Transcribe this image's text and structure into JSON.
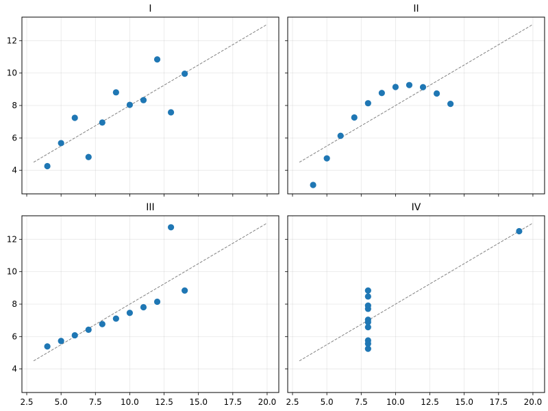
{
  "chart_data": {
    "type": "scatter",
    "colors": {
      "point": "#1f77b4",
      "fit_line": "#808080",
      "grid": "#b0b0b0"
    },
    "xlim": [
      2.15,
      20.85
    ],
    "ylim": [
      2.55,
      13.45
    ],
    "x_ticks": [
      2.5,
      5.0,
      7.5,
      10.0,
      12.5,
      15.0,
      17.5,
      20.0
    ],
    "x_tick_labels": [
      "2.5",
      "5.0",
      "7.5",
      "10.0",
      "12.5",
      "15.0",
      "17.5",
      "20.0"
    ],
    "y_ticks": [
      4,
      6,
      8,
      10,
      12
    ],
    "y_tick_labels": [
      "4",
      "6",
      "8",
      "10",
      "12"
    ],
    "grid": true,
    "shared_x": true,
    "shared_y": true,
    "fit_line": {
      "x": [
        3,
        20
      ],
      "y": [
        4.5,
        13.0
      ],
      "style": "dashed"
    },
    "panels": [
      {
        "title": "I",
        "points": [
          [
            10,
            8.04
          ],
          [
            8,
            6.95
          ],
          [
            13,
            7.58
          ],
          [
            9,
            8.81
          ],
          [
            11,
            8.33
          ],
          [
            14,
            9.96
          ],
          [
            6,
            7.24
          ],
          [
            4,
            4.26
          ],
          [
            12,
            10.84
          ],
          [
            7,
            4.82
          ],
          [
            5,
            5.68
          ]
        ]
      },
      {
        "title": "II",
        "points": [
          [
            10,
            9.14
          ],
          [
            8,
            8.14
          ],
          [
            13,
            8.74
          ],
          [
            9,
            8.77
          ],
          [
            11,
            9.26
          ],
          [
            14,
            8.1
          ],
          [
            6,
            6.13
          ],
          [
            4,
            3.1
          ],
          [
            12,
            9.13
          ],
          [
            7,
            7.26
          ],
          [
            5,
            4.74
          ]
        ]
      },
      {
        "title": "III",
        "points": [
          [
            10,
            7.46
          ],
          [
            8,
            6.77
          ],
          [
            13,
            12.74
          ],
          [
            9,
            7.11
          ],
          [
            11,
            7.81
          ],
          [
            14,
            8.84
          ],
          [
            6,
            6.08
          ],
          [
            4,
            5.39
          ],
          [
            12,
            8.15
          ],
          [
            7,
            6.42
          ],
          [
            5,
            5.73
          ]
        ]
      },
      {
        "title": "IV",
        "points": [
          [
            8,
            6.58
          ],
          [
            8,
            5.76
          ],
          [
            8,
            7.71
          ],
          [
            8,
            8.84
          ],
          [
            8,
            8.47
          ],
          [
            8,
            7.04
          ],
          [
            8,
            5.25
          ],
          [
            19,
            12.5
          ],
          [
            8,
            5.56
          ],
          [
            8,
            7.91
          ],
          [
            8,
            6.89
          ]
        ]
      }
    ]
  }
}
